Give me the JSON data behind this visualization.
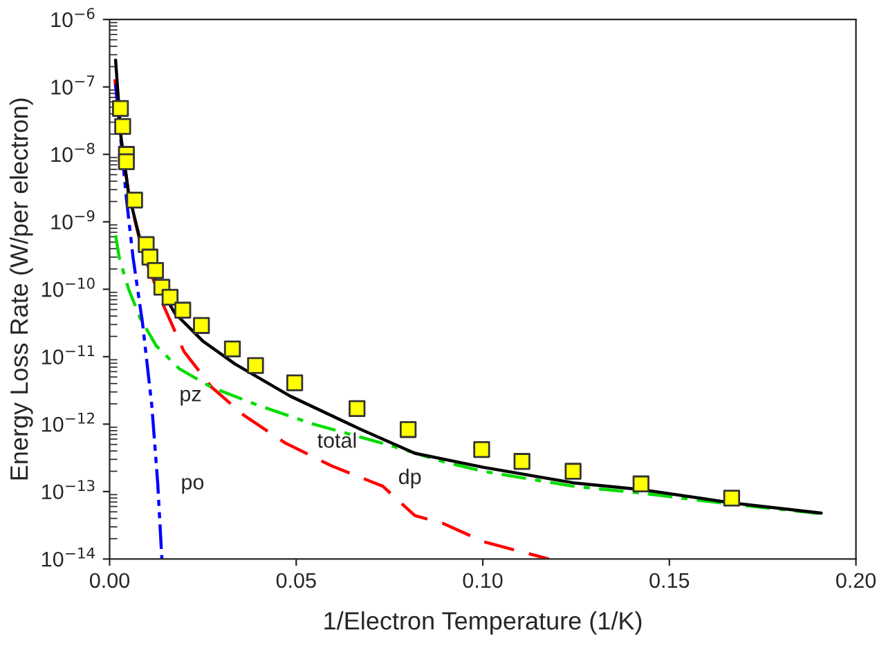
{
  "chart_data": {
    "type": "line",
    "xlabel": "1/Electron Temperature (1/K)",
    "ylabel": "Energy Loss Rate (W/per electron)",
    "log": "y",
    "grid": false,
    "legend": false,
    "xlim": [
      0,
      0.2
    ],
    "xticks": [
      {
        "value": 0,
        "label": "0.00"
      },
      {
        "value": 0.05,
        "label": "0.05"
      },
      {
        "value": 0.1,
        "label": "0.10"
      },
      {
        "value": 0.15,
        "label": "0.15"
      },
      {
        "value": 0.2,
        "label": "0.20"
      }
    ],
    "ylim": [
      1e-14,
      1e-06
    ],
    "yticks": [
      {
        "value": 1e-14,
        "label": "10$^{−14}$"
      },
      {
        "value": 1e-13,
        "label": "10$^{−13}$"
      },
      {
        "value": 1e-12,
        "label": "10$^{−12}$"
      },
      {
        "value": 1e-11,
        "label": "10$^{−11}$"
      },
      {
        "value": 1e-10,
        "label": "10$^{−10}$"
      },
      {
        "value": 1e-09,
        "label": "10$^{−9}$"
      },
      {
        "value": 1e-08,
        "label": "10$^{−8}$"
      },
      {
        "value": 1e-07,
        "label": "10$^{−7}$"
      },
      {
        "value": 1e-06,
        "label": "10$^{−6}$"
      }
    ],
    "series": [
      {
        "color": "#ff0000",
        "line_style": "dashed",
        "marker": "none",
        "x": [
          0.0014,
          0.0031,
          0.0051,
          0.0088,
          0.0138,
          0.0199,
          0.0274,
          0.036,
          0.0472,
          0.0595,
          0.0732,
          0.0818,
          0.0892,
          0.1003,
          0.1177
        ],
        "values": [
          1.3e-07,
          1.7e-08,
          2.6e-09,
          3.6e-10,
          6.9e-11,
          1.2e-11,
          3.5e-12,
          1.35e-12,
          5.2e-13,
          2.4e-13,
          1.2e-13,
          4.4e-14,
          3.4e-14,
          1.8e-14,
          1e-14
        ]
      },
      {
        "color": "#00dd00",
        "line_style": "dashdot",
        "marker": "none",
        "x": [
          0.0016,
          0.0026,
          0.0051,
          0.0082,
          0.0125,
          0.0187,
          0.0274,
          0.0398,
          0.0546,
          0.0732,
          0.0892,
          0.1,
          0.1242,
          0.1424,
          0.1667,
          0.1907
        ],
        "values": [
          6.3e-10,
          2.9e-10,
          1e-10,
          3.7e-11,
          1.45e-11,
          6.6e-12,
          3.5e-12,
          1.9e-12,
          1e-12,
          5.2e-13,
          2.8e-13,
          2e-13,
          1.2e-13,
          9.5e-14,
          6.5e-14,
          4.7e-14
        ]
      },
      {
        "color": "#0000ff",
        "line_style": "dashdotdot",
        "marker": "none",
        "x": [
          0.0016,
          0.0033,
          0.0045,
          0.0063,
          0.0088,
          0.0113,
          0.0129,
          0.014
        ],
        "values": [
          1.1e-07,
          1.1e-08,
          2.2e-09,
          2.9e-10,
          3.2e-11,
          1.9e-12,
          1.3e-13,
          1e-14
        ]
      },
      {
        "color": "#000000",
        "line_style": "solid",
        "marker": "none",
        "x": [
          0.0016,
          0.0031,
          0.0051,
          0.0088,
          0.0125,
          0.0175,
          0.025,
          0.0336,
          0.0484,
          0.067,
          0.0818,
          0.1,
          0.1242,
          0.1424,
          0.1667,
          0.1907
        ],
        "values": [
          2.5e-07,
          1.7e-08,
          2.6e-09,
          3.9e-10,
          1.3e-10,
          4.4e-11,
          1.7e-11,
          7.8e-12,
          2.6e-12,
          8.5e-13,
          3.7e-13,
          2.3e-13,
          1.35e-13,
          1.07e-13,
          6.8e-14,
          4.8e-14
        ]
      },
      {
        "type": "scatter",
        "color": "#ffff00",
        "marker": "square",
        "x": [
          0.0029,
          0.0035,
          0.0045,
          0.0045,
          0.0067,
          0.0098,
          0.0108,
          0.0123,
          0.014,
          0.0162,
          0.0196,
          0.0246,
          0.0329,
          0.0391,
          0.0496,
          0.0663,
          0.08,
          0.0997,
          0.1105,
          0.1242,
          0.1424,
          0.1667
        ],
        "values": [
          4.8e-08,
          2.6e-08,
          1e-08,
          7.8e-09,
          2.1e-09,
          4.6e-10,
          3e-10,
          1.9e-10,
          1.07e-10,
          7.6e-11,
          4.9e-11,
          2.9e-11,
          1.3e-11,
          7.4e-12,
          4.1e-12,
          1.7e-12,
          8.3e-13,
          4.2e-13,
          2.8e-13,
          2e-13,
          1.3e-13,
          8e-14
        ]
      }
    ],
    "annotations": [
      {
        "text": "pz",
        "x": 0.0187,
        "y": 6.6e-12
      },
      {
        "text": "total",
        "x": 0.0484,
        "y": 2.6e-12
      },
      {
        "text": "dp",
        "x": 0.0732,
        "y": 1.2e-13
      },
      {
        "text": "po",
        "x": 0.0129,
        "y": 1.3e-13
      }
    ]
  }
}
